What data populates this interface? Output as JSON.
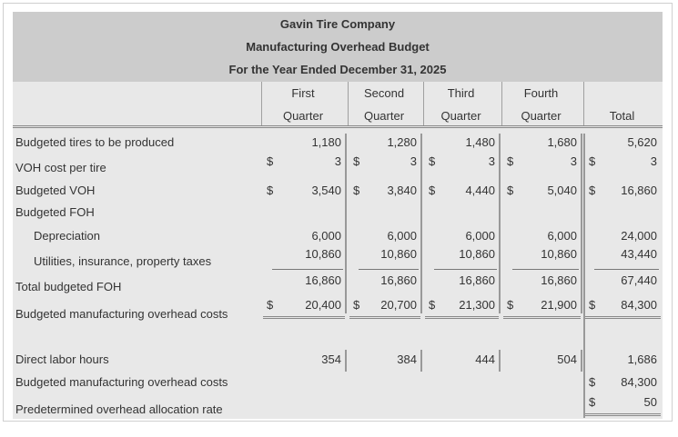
{
  "title": {
    "company": "Gavin Tire Company",
    "report": "Manufacturing Overhead Budget",
    "period": "For the Year Ended December 31, 2025"
  },
  "columns": [
    {
      "line1": "First",
      "line2": "Quarter"
    },
    {
      "line1": "Second",
      "line2": "Quarter"
    },
    {
      "line1": "Third",
      "line2": "Quarter"
    },
    {
      "line1": "Fourth",
      "line2": "Quarter"
    },
    {
      "line1": "",
      "line2": "Total"
    }
  ],
  "dollar": "$",
  "rows": {
    "tires": {
      "label": "Budgeted tires to be produced",
      "values": [
        "1,180",
        "1,280",
        "1,480",
        "1,680",
        "5,620"
      ]
    },
    "voh_rate": {
      "label": "VOH cost per tire",
      "values": [
        "3",
        "3",
        "3",
        "3",
        "3"
      ]
    },
    "voh": {
      "label": "Budgeted VOH",
      "values": [
        "3,540",
        "3,840",
        "4,440",
        "5,040",
        "16,860"
      ]
    },
    "foh": {
      "label": "Budgeted FOH"
    },
    "depreciation": {
      "label": "Depreciation",
      "values": [
        "6,000",
        "6,000",
        "6,000",
        "6,000",
        "24,000"
      ]
    },
    "utilities": {
      "label": "Utilities, insurance, property taxes",
      "values": [
        "10,860",
        "10,860",
        "10,860",
        "10,860",
        "43,440"
      ]
    },
    "total_foh": {
      "label": "Total budgeted FOH",
      "values": [
        "16,860",
        "16,860",
        "16,860",
        "16,860",
        "67,440"
      ]
    },
    "moh": {
      "label": "Budgeted manufacturing overhead costs",
      "values": [
        "20,400",
        "20,700",
        "21,300",
        "21,900",
        "84,300"
      ]
    },
    "dlh": {
      "label": "Direct labor hours",
      "values": [
        "354",
        "384",
        "444",
        "504",
        "1,686"
      ]
    },
    "moh2": {
      "label": "Budgeted manufacturing overhead costs",
      "value": "84,300"
    },
    "rate": {
      "label": "Predetermined overhead allocation rate",
      "value": "50"
    }
  }
}
